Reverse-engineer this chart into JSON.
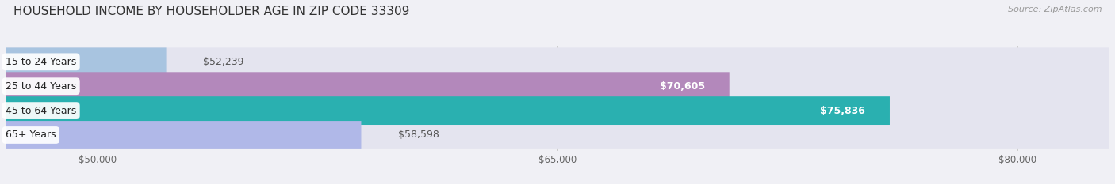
{
  "title": "HOUSEHOLD INCOME BY HOUSEHOLDER AGE IN ZIP CODE 33309",
  "source": "Source: ZipAtlas.com",
  "categories": [
    "15 to 24 Years",
    "25 to 44 Years",
    "45 to 64 Years",
    "65+ Years"
  ],
  "values": [
    52239,
    70605,
    75836,
    58598
  ],
  "bar_colors": [
    "#a8c4e0",
    "#b388bb",
    "#2ab0b0",
    "#b0b8e8"
  ],
  "label_colors": [
    "#555555",
    "#ffffff",
    "#ffffff",
    "#555555"
  ],
  "xmin": 47000,
  "xmax": 83000,
  "xticks": [
    50000,
    65000,
    80000
  ],
  "xtick_labels": [
    "$50,000",
    "$65,000",
    "$80,000"
  ],
  "background_color": "#f0f0f5",
  "bar_bg_color": "#e4e4ef",
  "title_fontsize": 11,
  "source_fontsize": 8,
  "label_fontsize": 9,
  "tick_fontsize": 8.5,
  "bar_height": 0.58,
  "value_label_inside_threshold": 60000
}
